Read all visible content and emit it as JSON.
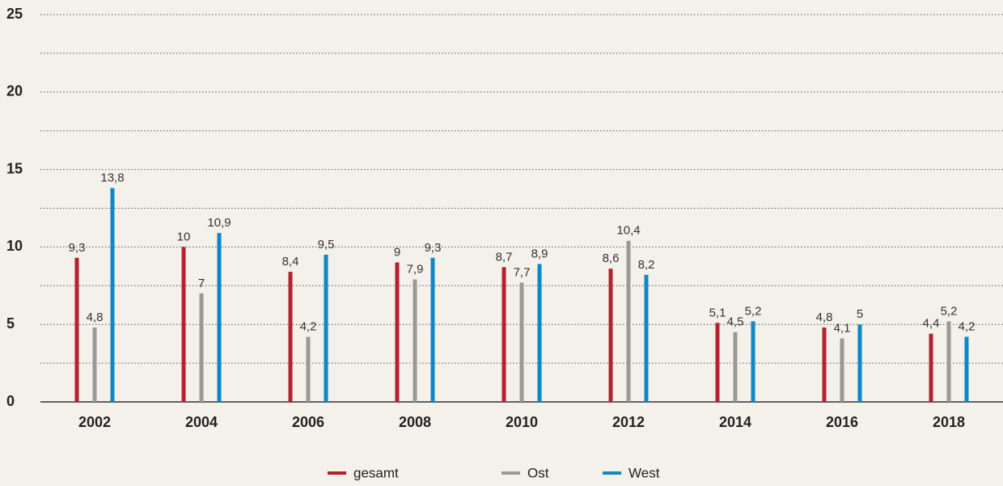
{
  "chart_data": {
    "type": "bar",
    "categories": [
      "2002",
      "2004",
      "2006",
      "2008",
      "2010",
      "2012",
      "2014",
      "2016",
      "2018"
    ],
    "series": [
      {
        "name": "gesamt",
        "color": "#b5222f",
        "values": [
          9.3,
          10,
          8.4,
          9,
          8.7,
          8.6,
          5.1,
          4.8,
          4.4
        ],
        "value_labels": [
          "9,3",
          "10",
          "8,4",
          "9",
          "8,7",
          "8,6",
          "5,1",
          "4,8",
          "4,4"
        ]
      },
      {
        "name": "Ost",
        "color": "#999999",
        "values": [
          4.8,
          7,
          4.2,
          7.9,
          7.7,
          10.4,
          4.5,
          4.1,
          5.2
        ],
        "value_labels": [
          "4,8",
          "7",
          "4,2",
          "7,9",
          "7,7",
          "10,4",
          "4,5",
          "4,1",
          "5,2"
        ]
      },
      {
        "name": "West",
        "color": "#0a88c8",
        "values": [
          13.8,
          10.9,
          9.5,
          9.3,
          8.9,
          8.2,
          5.2,
          5,
          4.2
        ],
        "value_labels": [
          "13,8",
          "10,9",
          "9,5",
          "9,3",
          "8,9",
          "8,2",
          "5,2",
          "5",
          "4,2"
        ]
      }
    ],
    "ylim": [
      0,
      25
    ],
    "yticks": [
      0,
      5,
      10,
      15,
      20,
      25
    ],
    "minor_yticks": [
      2.5,
      7.5,
      12.5,
      17.5,
      22.5
    ],
    "grid": true,
    "legend": "bottom"
  }
}
